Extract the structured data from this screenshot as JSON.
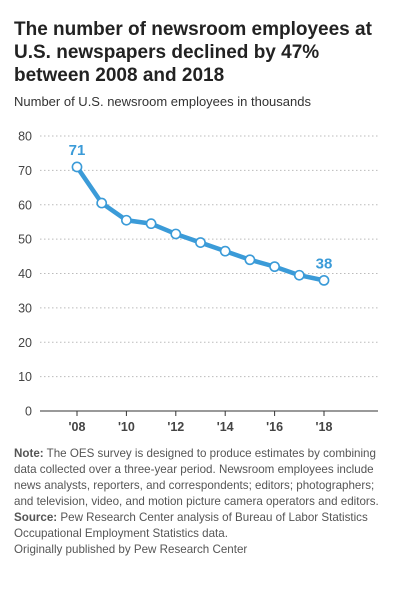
{
  "title": "The number of newsroom employees at U.S. newspapers declined by 47% between 2008 and 2018",
  "subtitle": "Number of U.S. newsroom employees in thousands",
  "chart_data": {
    "type": "line",
    "x": [
      2008,
      2009,
      2010,
      2011,
      2012,
      2013,
      2014,
      2015,
      2016,
      2017,
      2018
    ],
    "values": [
      71,
      60.5,
      55.5,
      54.5,
      51.5,
      49,
      46.5,
      44,
      42,
      39.5,
      38
    ],
    "xtick_values": [
      2008,
      2010,
      2012,
      2014,
      2016,
      2018
    ],
    "xtick_labels": [
      "'08",
      "'10",
      "'12",
      "'14",
      "'16",
      "'18"
    ],
    "yticks": [
      0,
      10,
      20,
      30,
      40,
      50,
      60,
      70,
      80
    ],
    "ylim": [
      0,
      80
    ],
    "xlim": [
      2008,
      2018
    ],
    "data_labels": [
      {
        "x": 2008,
        "text": "71"
      },
      {
        "x": 2018,
        "text": "38"
      }
    ],
    "grid": "horizontal dotted",
    "line_color": "#3b9bd8",
    "xlabel": "",
    "ylabel": ""
  },
  "notes": {
    "note_label": "Note:",
    "note_text": " The OES survey is designed to produce estimates by combining data collected over a three-year period. Newsroom employees include news analysts, reporters, and correspondents; editors; photographers; and television, video, and motion picture camera operators and editors.",
    "source_label": "Source:",
    "source_text": " Pew Research Center analysis of Bureau of Labor Statistics Occupational Employment Statistics data.",
    "credit": "Originally published by Pew Research Center"
  }
}
